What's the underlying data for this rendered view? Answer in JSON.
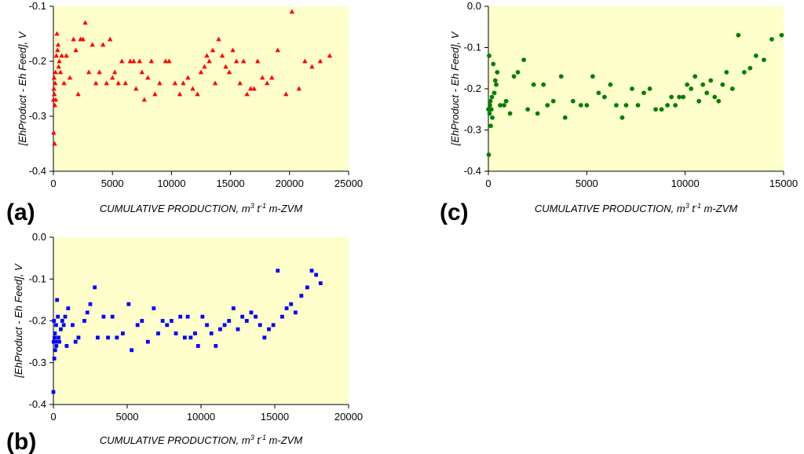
{
  "chart_data": [
    {
      "type": "scatter",
      "panel_label": "(a)",
      "marker": "triangle",
      "color": "#ff0000",
      "xlabel": "CUMULATIVE PRODUCTION, m³ t⁻¹ m-ZVM",
      "ylabel": "[EhProduct - Eh Feed], V",
      "xlim": [
        0,
        25000
      ],
      "ylim": [
        -0.4,
        -0.1
      ],
      "xticks": [
        "0",
        "5000",
        "10000",
        "15000",
        "20000",
        "25000"
      ],
      "yticks": [
        "-0.4",
        "-0.3",
        "-0.2",
        "-0.1"
      ],
      "points": [
        [
          0,
          -0.27
        ],
        [
          20,
          -0.33
        ],
        [
          40,
          -0.25
        ],
        [
          60,
          -0.23
        ],
        [
          80,
          -0.26
        ],
        [
          100,
          -0.35
        ],
        [
          120,
          -0.28
        ],
        [
          150,
          -0.24
        ],
        [
          180,
          -0.22
        ],
        [
          200,
          -0.27
        ],
        [
          250,
          -0.19
        ],
        [
          300,
          -0.15
        ],
        [
          350,
          -0.18
        ],
        [
          400,
          -0.17
        ],
        [
          450,
          -0.21
        ],
        [
          500,
          -0.2
        ],
        [
          600,
          -0.22
        ],
        [
          700,
          -0.19
        ],
        [
          900,
          -0.24
        ],
        [
          1100,
          -0.19
        ],
        [
          1400,
          -0.23
        ],
        [
          1700,
          -0.16
        ],
        [
          1900,
          -0.18
        ],
        [
          2100,
          -0.26
        ],
        [
          2300,
          -0.16
        ],
        [
          2500,
          -0.16
        ],
        [
          2700,
          -0.13
        ],
        [
          3000,
          -0.22
        ],
        [
          3300,
          -0.17
        ],
        [
          3600,
          -0.24
        ],
        [
          3900,
          -0.22
        ],
        [
          4200,
          -0.17
        ],
        [
          4500,
          -0.24
        ],
        [
          4800,
          -0.16
        ],
        [
          5000,
          -0.23
        ],
        [
          5200,
          -0.22
        ],
        [
          5500,
          -0.24
        ],
        [
          5800,
          -0.2
        ],
        [
          6100,
          -0.24
        ],
        [
          6500,
          -0.2
        ],
        [
          6800,
          -0.2
        ],
        [
          7000,
          -0.25
        ],
        [
          7300,
          -0.2
        ],
        [
          7500,
          -0.22
        ],
        [
          7700,
          -0.27
        ],
        [
          8000,
          -0.23
        ],
        [
          8300,
          -0.2
        ],
        [
          8600,
          -0.26
        ],
        [
          9000,
          -0.24
        ],
        [
          9500,
          -0.2
        ],
        [
          9800,
          -0.2
        ],
        [
          10300,
          -0.24
        ],
        [
          10700,
          -0.26
        ],
        [
          11000,
          -0.24
        ],
        [
          11400,
          -0.23
        ],
        [
          11800,
          -0.25
        ],
        [
          12200,
          -0.26
        ],
        [
          12500,
          -0.22
        ],
        [
          12800,
          -0.21
        ],
        [
          13000,
          -0.19
        ],
        [
          13200,
          -0.2
        ],
        [
          13500,
          -0.18
        ],
        [
          13700,
          -0.24
        ],
        [
          14000,
          -0.16
        ],
        [
          14300,
          -0.19
        ],
        [
          14600,
          -0.21
        ],
        [
          14900,
          -0.22
        ],
        [
          15200,
          -0.18
        ],
        [
          15500,
          -0.2
        ],
        [
          15800,
          -0.24
        ],
        [
          16100,
          -0.2
        ],
        [
          16400,
          -0.26
        ],
        [
          16700,
          -0.25
        ],
        [
          17000,
          -0.25
        ],
        [
          17300,
          -0.2
        ],
        [
          17700,
          -0.23
        ],
        [
          18100,
          -0.24
        ],
        [
          18500,
          -0.23
        ],
        [
          19000,
          -0.18
        ],
        [
          19700,
          -0.26
        ],
        [
          20200,
          -0.11
        ],
        [
          20800,
          -0.25
        ],
        [
          21300,
          -0.2
        ],
        [
          21900,
          -0.21
        ],
        [
          22600,
          -0.2
        ],
        [
          23400,
          -0.19
        ]
      ]
    },
    {
      "type": "scatter",
      "panel_label": "(c)",
      "marker": "circle",
      "color": "#008000",
      "xlabel": "CUMULATIVE PRODUCTION, m³ t⁻¹ m-ZVM",
      "ylabel": "[EhProduct - Eh Feed], V",
      "xlim": [
        0,
        15000
      ],
      "ylim": [
        -0.4,
        0.0
      ],
      "xticks": [
        "0",
        "5000",
        "10000",
        "15000"
      ],
      "yticks": [
        "-0.4",
        "-0.3",
        "-0.2",
        "-0.1",
        "0.0"
      ],
      "points": [
        [
          0,
          -0.25
        ],
        [
          20,
          -0.36
        ],
        [
          40,
          -0.12
        ],
        [
          60,
          -0.26
        ],
        [
          80,
          -0.24
        ],
        [
          100,
          -0.23
        ],
        [
          120,
          -0.29
        ],
        [
          150,
          -0.25
        ],
        [
          180,
          -0.22
        ],
        [
          200,
          -0.27
        ],
        [
          250,
          -0.14
        ],
        [
          300,
          -0.21
        ],
        [
          350,
          -0.18
        ],
        [
          400,
          -0.19
        ],
        [
          450,
          -0.16
        ],
        [
          600,
          -0.24
        ],
        [
          800,
          -0.24
        ],
        [
          900,
          -0.23
        ],
        [
          1100,
          -0.26
        ],
        [
          1300,
          -0.17
        ],
        [
          1500,
          -0.16
        ],
        [
          1800,
          -0.13
        ],
        [
          2000,
          -0.25
        ],
        [
          2300,
          -0.19
        ],
        [
          2500,
          -0.26
        ],
        [
          2800,
          -0.19
        ],
        [
          3000,
          -0.24
        ],
        [
          3300,
          -0.23
        ],
        [
          3700,
          -0.17
        ],
        [
          3900,
          -0.27
        ],
        [
          4300,
          -0.23
        ],
        [
          4700,
          -0.24
        ],
        [
          5000,
          -0.24
        ],
        [
          5300,
          -0.17
        ],
        [
          5600,
          -0.21
        ],
        [
          5900,
          -0.22
        ],
        [
          6200,
          -0.19
        ],
        [
          6500,
          -0.24
        ],
        [
          6800,
          -0.27
        ],
        [
          7000,
          -0.24
        ],
        [
          7300,
          -0.2
        ],
        [
          7600,
          -0.24
        ],
        [
          7900,
          -0.21
        ],
        [
          8200,
          -0.2
        ],
        [
          8500,
          -0.25
        ],
        [
          8800,
          -0.25
        ],
        [
          9100,
          -0.24
        ],
        [
          9300,
          -0.22
        ],
        [
          9500,
          -0.24
        ],
        [
          9700,
          -0.22
        ],
        [
          9900,
          -0.22
        ],
        [
          10100,
          -0.19
        ],
        [
          10300,
          -0.2
        ],
        [
          10500,
          -0.17
        ],
        [
          10700,
          -0.23
        ],
        [
          10900,
          -0.19
        ],
        [
          11100,
          -0.21
        ],
        [
          11300,
          -0.18
        ],
        [
          11500,
          -0.22
        ],
        [
          11700,
          -0.23
        ],
        [
          11900,
          -0.19
        ],
        [
          12100,
          -0.16
        ],
        [
          12400,
          -0.2
        ],
        [
          12700,
          -0.07
        ],
        [
          13000,
          -0.16
        ],
        [
          13300,
          -0.15
        ],
        [
          13600,
          -0.12
        ],
        [
          14000,
          -0.13
        ],
        [
          14400,
          -0.08
        ],
        [
          14900,
          -0.07
        ]
      ]
    },
    {
      "type": "scatter",
      "panel_label": "(b)",
      "marker": "square",
      "color": "#0000ff",
      "xlabel": "CUMULATIVE PRODUCTION, m³ t⁻¹ m-ZVM",
      "ylabel": "[EhProduct - Eh Feed], V",
      "xlim": [
        0,
        20000
      ],
      "ylim": [
        -0.4,
        0.0
      ],
      "xticks": [
        "0",
        "5000",
        "10000",
        "15000",
        "20000"
      ],
      "yticks": [
        "-0.4",
        "-0.3",
        "-0.2",
        "-0.1",
        "0.0"
      ],
      "points": [
        [
          0,
          -0.37
        ],
        [
          20,
          -0.25
        ],
        [
          40,
          -0.2
        ],
        [
          60,
          -0.29
        ],
        [
          80,
          -0.24
        ],
        [
          100,
          -0.23
        ],
        [
          120,
          -0.27
        ],
        [
          150,
          -0.25
        ],
        [
          180,
          -0.21
        ],
        [
          200,
          -0.26
        ],
        [
          250,
          -0.15
        ],
        [
          300,
          -0.19
        ],
        [
          350,
          -0.24
        ],
        [
          400,
          -0.25
        ],
        [
          500,
          -0.22
        ],
        [
          600,
          -0.2
        ],
        [
          700,
          -0.21
        ],
        [
          800,
          -0.19
        ],
        [
          900,
          -0.26
        ],
        [
          1000,
          -0.17
        ],
        [
          1300,
          -0.21
        ],
        [
          1500,
          -0.25
        ],
        [
          1700,
          -0.24
        ],
        [
          2100,
          -0.2
        ],
        [
          2300,
          -0.18
        ],
        [
          2500,
          -0.16
        ],
        [
          2800,
          -0.12
        ],
        [
          3000,
          -0.24
        ],
        [
          3400,
          -0.19
        ],
        [
          3700,
          -0.24
        ],
        [
          4000,
          -0.19
        ],
        [
          4300,
          -0.24
        ],
        [
          4700,
          -0.23
        ],
        [
          5100,
          -0.16
        ],
        [
          5300,
          -0.27
        ],
        [
          5700,
          -0.21
        ],
        [
          6000,
          -0.2
        ],
        [
          6400,
          -0.25
        ],
        [
          6800,
          -0.17
        ],
        [
          7100,
          -0.23
        ],
        [
          7400,
          -0.2
        ],
        [
          7700,
          -0.21
        ],
        [
          8000,
          -0.2
        ],
        [
          8300,
          -0.23
        ],
        [
          8600,
          -0.19
        ],
        [
          8900,
          -0.24
        ],
        [
          9100,
          -0.19
        ],
        [
          9300,
          -0.24
        ],
        [
          9600,
          -0.23
        ],
        [
          9800,
          -0.26
        ],
        [
          10100,
          -0.19
        ],
        [
          10400,
          -0.21
        ],
        [
          10700,
          -0.23
        ],
        [
          11000,
          -0.26
        ],
        [
          11300,
          -0.22
        ],
        [
          11600,
          -0.21
        ],
        [
          11900,
          -0.2
        ],
        [
          12200,
          -0.17
        ],
        [
          12500,
          -0.22
        ],
        [
          12800,
          -0.19
        ],
        [
          13100,
          -0.2
        ],
        [
          13400,
          -0.18
        ],
        [
          13700,
          -0.19
        ],
        [
          14000,
          -0.21
        ],
        [
          14300,
          -0.24
        ],
        [
          14600,
          -0.22
        ],
        [
          14900,
          -0.21
        ],
        [
          15200,
          -0.08
        ],
        [
          15500,
          -0.19
        ],
        [
          15800,
          -0.17
        ],
        [
          16100,
          -0.16
        ],
        [
          16400,
          -0.18
        ],
        [
          16800,
          -0.14
        ],
        [
          17200,
          -0.12
        ],
        [
          17500,
          -0.08
        ],
        [
          17800,
          -0.09
        ],
        [
          18100,
          -0.11
        ]
      ]
    }
  ]
}
